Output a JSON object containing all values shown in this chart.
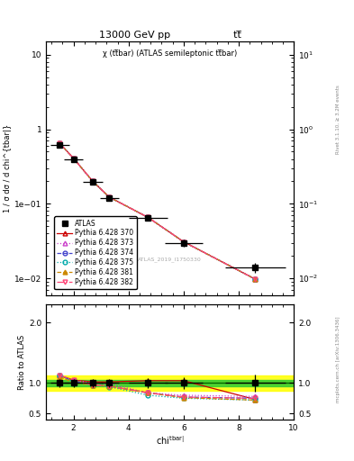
{
  "title_top": "13000 GeV pp",
  "title_top_right": "tt̅",
  "plot_title": "χ (tt̅bar) (ATLAS semileptonic tt̅bar)",
  "watermark": "ATLAS_2019_I1750330",
  "right_label_top": "Rivet 3.1.10, ≥ 3.2M events",
  "right_label_bottom": "mcplots.cern.ch [arXiv:1306.3436]",
  "ylabel_top": "1 / σ dσ / d chi^{tbar|}",
  "ylabel_bottom": "Ratio to ATLAS",
  "xmin": 1.0,
  "xmax": 10.0,
  "ylog_min": 0.006,
  "ylog_max": 15.0,
  "ratio_ymin": 0.4,
  "ratio_ymax": 2.3,
  "chi_x": [
    1.5,
    2.0,
    2.7,
    3.3,
    4.7,
    6.0,
    8.6
  ],
  "atlas_y": [
    0.62,
    0.4,
    0.195,
    0.12,
    0.064,
    0.03,
    0.014
  ],
  "atlas_yerr": [
    0.04,
    0.025,
    0.012,
    0.008,
    0.005,
    0.003,
    0.002
  ],
  "atlas_xerr": [
    0.35,
    0.35,
    0.35,
    0.35,
    0.7,
    0.7,
    1.1
  ],
  "series": [
    {
      "label": "Pythia 6.428 370",
      "color": "#cc0000",
      "linestyle": "-",
      "marker": "^",
      "mfc": "none",
      "mec": "#cc0000",
      "y": [
        0.645,
        0.408,
        0.2,
        0.123,
        0.066,
        0.031,
        0.0098
      ],
      "ratio": [
        1.12,
        1.05,
        1.02,
        1.02,
        1.04,
        1.04,
        0.73
      ]
    },
    {
      "label": "Pythia 6.428 373",
      "color": "#cc44cc",
      "linestyle": ":",
      "marker": "^",
      "mfc": "none",
      "mec": "#cc44cc",
      "y": [
        0.645,
        0.408,
        0.2,
        0.123,
        0.066,
        0.031,
        0.0098
      ],
      "ratio": [
        1.13,
        1.05,
        1.0,
        0.99,
        0.84,
        0.8,
        0.78
      ]
    },
    {
      "label": "Pythia 6.428 374",
      "color": "#4444cc",
      "linestyle": "--",
      "marker": "o",
      "mfc": "none",
      "mec": "#4444cc",
      "y": [
        0.645,
        0.408,
        0.2,
        0.123,
        0.066,
        0.031,
        0.0098
      ],
      "ratio": [
        1.13,
        1.03,
        0.97,
        0.95,
        0.84,
        0.77,
        0.75
      ]
    },
    {
      "label": "Pythia 6.428 375",
      "color": "#00aaaa",
      "linestyle": ":",
      "marker": "o",
      "mfc": "none",
      "mec": "#00aaaa",
      "y": [
        0.645,
        0.408,
        0.2,
        0.123,
        0.066,
        0.031,
        0.0098
      ],
      "ratio": [
        1.13,
        1.02,
        0.97,
        0.94,
        0.8,
        0.75,
        0.72
      ]
    },
    {
      "label": "Pythia 6.428 381",
      "color": "#cc8800",
      "linestyle": "--",
      "marker": "^",
      "mfc": "#cc8800",
      "mec": "#cc8800",
      "y": [
        0.645,
        0.408,
        0.2,
        0.123,
        0.066,
        0.031,
        0.0098
      ],
      "ratio": [
        1.1,
        1.01,
        0.97,
        0.95,
        0.84,
        0.76,
        0.72
      ]
    },
    {
      "label": "Pythia 6.428 382",
      "color": "#ff4477",
      "linestyle": "-.",
      "marker": "v",
      "mfc": "none",
      "mec": "#ff4477",
      "y": [
        0.645,
        0.408,
        0.2,
        0.123,
        0.066,
        0.031,
        0.0098
      ],
      "ratio": [
        1.13,
        1.05,
        0.97,
        0.95,
        0.84,
        0.77,
        0.75
      ]
    }
  ],
  "green_band": [
    0.95,
    1.05
  ],
  "yellow_band": [
    0.88,
    1.12
  ]
}
